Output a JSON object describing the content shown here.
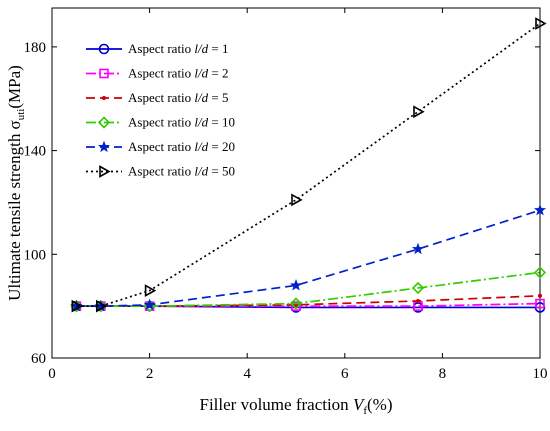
{
  "chart_data": {
    "type": "line",
    "xlabel": {
      "main": "Filler volume fraction ",
      "var": "V",
      "sub": "f",
      "unit": "(%)"
    },
    "ylabel": {
      "main": "Ultimate tensile  strength ",
      "sym": "σ",
      "sub": "uti",
      "unit": "(MPa)"
    },
    "xlim": [
      0,
      10
    ],
    "ylim": [
      60,
      195
    ],
    "xticks": [
      0,
      2,
      4,
      6,
      8,
      10
    ],
    "yticks": [
      60,
      100,
      140,
      180
    ],
    "grid": false,
    "legend_position": "top-left",
    "x": [
      0.5,
      1,
      2,
      5,
      7.5,
      10
    ],
    "series": [
      {
        "name_prefix": "Aspect ratio ",
        "name_var": "l/d",
        "name_suffix": " = 1",
        "color": "#0000cc",
        "marker": "circle",
        "dash": "",
        "values": [
          80,
          80,
          80,
          79.5,
          79.5,
          79.5
        ]
      },
      {
        "name_prefix": "Aspect ratio ",
        "name_var": "l/d",
        "name_suffix": " = 2",
        "color": "#ff00ff",
        "marker": "square",
        "dash": "10,3,2,3",
        "values": [
          80,
          80,
          80,
          80,
          80,
          81
        ]
      },
      {
        "name_prefix": "Aspect ratio ",
        "name_var": "l/d",
        "name_suffix": " = 5",
        "color": "#cc0000",
        "marker": "dot",
        "dash": "9,5",
        "values": [
          80,
          80,
          80,
          80.5,
          82,
          84
        ]
      },
      {
        "name_prefix": "Aspect ratio ",
        "name_var": "l/d",
        "name_suffix": " = 10",
        "color": "#33cc00",
        "marker": "diamond",
        "dash": "10,3,2,3",
        "values": [
          80,
          80,
          80,
          81,
          87,
          93
        ]
      },
      {
        "name_prefix": "Aspect ratio ",
        "name_var": "l/d",
        "name_suffix": " = 20",
        "color": "#0022cc",
        "marker": "star",
        "dash": "9,5",
        "values": [
          80,
          80,
          80.5,
          88,
          102,
          117
        ]
      },
      {
        "name_prefix": "Aspect ratio ",
        "name_var": "l/d",
        "name_suffix": " = 50",
        "color": "#000000",
        "marker": "triangle-right",
        "dash": "2,3",
        "values": [
          80,
          80,
          86,
          121,
          155,
          189
        ]
      }
    ]
  }
}
